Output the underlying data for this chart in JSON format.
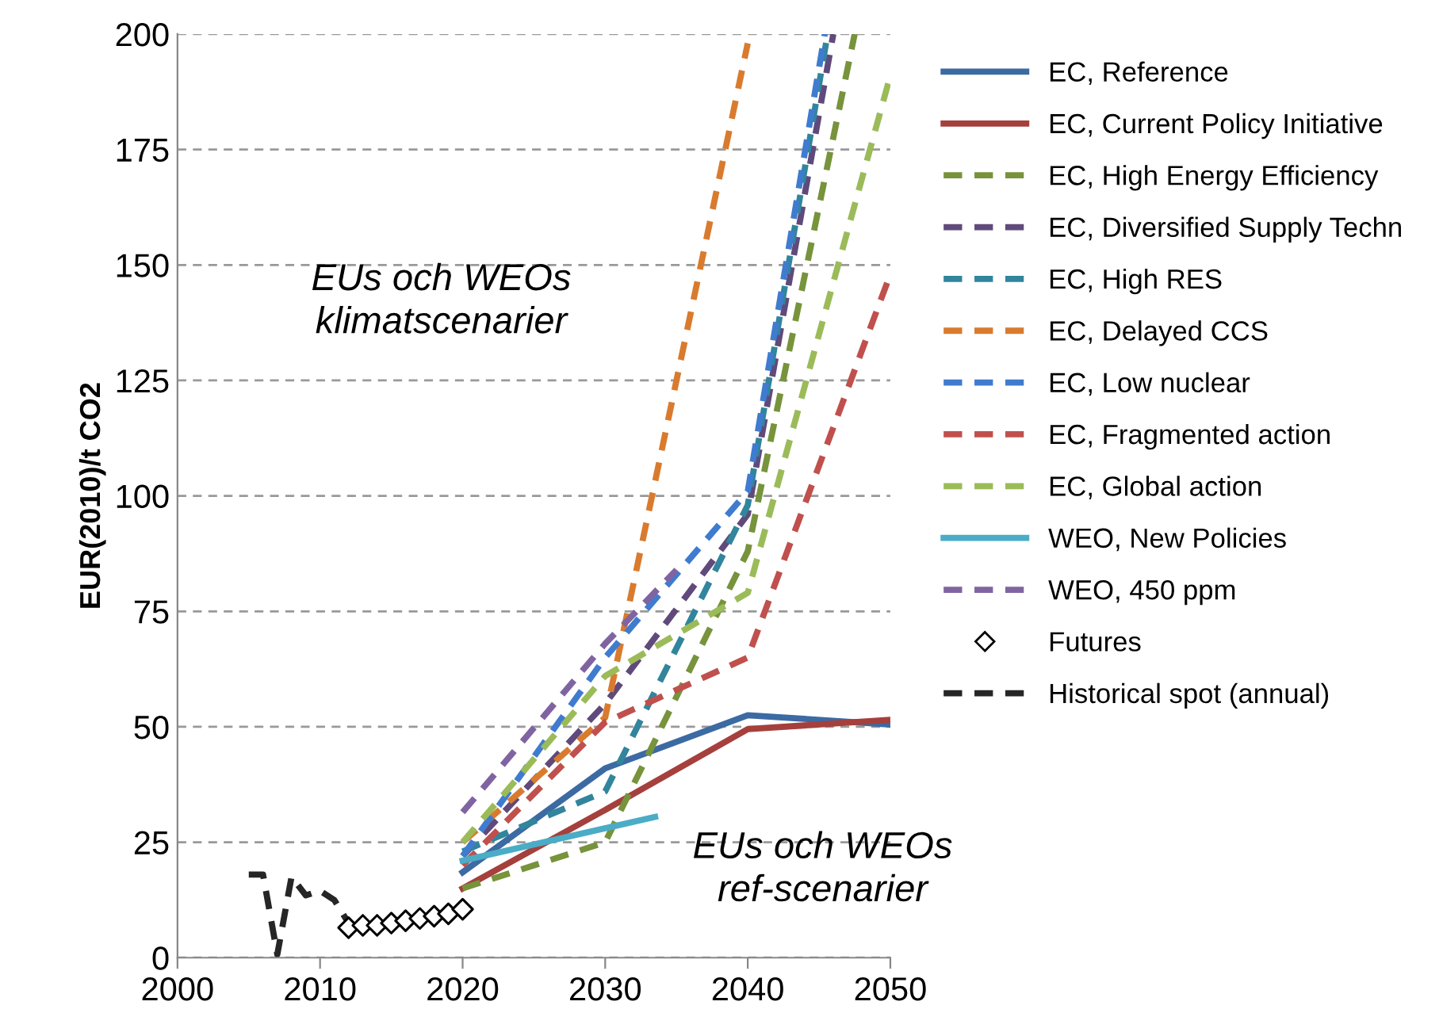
{
  "chart_data": {
    "type": "line",
    "ylabel": "EUR(2010)/t CO2",
    "xlim": [
      2000,
      2050
    ],
    "xticks": [
      2000,
      2010,
      2020,
      2030,
      2040,
      2050
    ],
    "ylim": [
      0,
      200
    ],
    "yticks": [
      0,
      25,
      50,
      75,
      100,
      125,
      150,
      175,
      200
    ],
    "grid": "y",
    "legend": "right",
    "annotations": [
      "EUs och WEOs\nklimatscenarier",
      "EUs och WEOs\nref-scenarier"
    ],
    "series": [
      {
        "name": "EC, Reference",
        "color": "#3c6aa3",
        "line_style": "solid",
        "x": [
          2020,
          2030,
          2040,
          2050
        ],
        "values": [
          18.5,
          41,
          52.5,
          50.5
        ]
      },
      {
        "name": "EC, Current Policy Initiative",
        "color": "#a5403d",
        "line_style": "solid",
        "x": [
          2020,
          2030,
          2040,
          2050
        ],
        "values": [
          15,
          32,
          49.5,
          51.5
        ]
      },
      {
        "name": "EC, High Energy Efficiency",
        "color": "#77933c",
        "line_style": "dashed",
        "x": [
          2020,
          2030,
          2040,
          2047.5
        ],
        "values": [
          15,
          25,
          88,
          200
        ]
      },
      {
        "name": "EC, Diversified Supply Techn",
        "color": "#604a7b",
        "line_style": "dashed",
        "x": [
          2020,
          2030,
          2040,
          2046
        ],
        "values": [
          22,
          55,
          96,
          200
        ]
      },
      {
        "name": "EC, High RES",
        "color": "#31859c",
        "line_style": "dashed",
        "x": [
          2020,
          2030,
          2040,
          2045.6
        ],
        "values": [
          23,
          36,
          98,
          200
        ]
      },
      {
        "name": "EC, Delayed CCS",
        "color": "#d97b2e",
        "line_style": "dashed",
        "x": [
          2020,
          2030,
          2040
        ],
        "values": [
          25,
          52,
          198
        ]
      },
      {
        "name": "EC, Low nuclear",
        "color": "#3f7ccf",
        "line_style": "dashed",
        "x": [
          2020,
          2030,
          2040,
          2045.4
        ],
        "values": [
          22,
          65,
          101,
          200
        ]
      },
      {
        "name": "EC, Fragmented action",
        "color": "#c0504d",
        "line_style": "dashed",
        "x": [
          2020,
          2030,
          2040,
          2050
        ],
        "values": [
          20,
          51,
          65,
          148
        ]
      },
      {
        "name": "EC, Global action",
        "color": "#9bbb59",
        "line_style": "dashed",
        "x": [
          2020,
          2030,
          2040,
          2050
        ],
        "values": [
          25,
          61,
          79,
          191
        ]
      },
      {
        "name": "WEO, New Policies",
        "color": "#4bacc6",
        "line_style": "solid",
        "x": [
          2020,
          2033.5
        ],
        "values": [
          21,
          30.5
        ]
      },
      {
        "name": "WEO, 450 ppm",
        "color": "#8064a2",
        "line_style": "dashed",
        "x": [
          2020,
          2030,
          2035
        ],
        "values": [
          31.5,
          68,
          84
        ]
      },
      {
        "name": "Futures",
        "color": "#000000",
        "type": "scatter",
        "marker": "diamond",
        "x": [
          2012,
          2013,
          2014,
          2015,
          2016,
          2017,
          2018,
          2019,
          2020
        ],
        "values": [
          6.5,
          7,
          7,
          7.5,
          8,
          8.5,
          9,
          9.5,
          10.5
        ]
      },
      {
        "name": "Historical spot (annual)",
        "color": "#262626",
        "line_style": "dashed",
        "x": [
          2005,
          2006,
          2007,
          2008,
          2009,
          2010,
          2011,
          2012
        ],
        "values": [
          18,
          18,
          0.7,
          17.5,
          13.5,
          14.5,
          12.5,
          7.5
        ]
      }
    ]
  }
}
